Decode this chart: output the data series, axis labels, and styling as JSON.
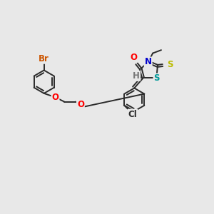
{
  "bg_color": "#e8e8e8",
  "bond_color": "#2a2a2a",
  "bond_lw": 1.4,
  "dbo": 0.05,
  "atom_colors": {
    "O": "#ff0000",
    "N": "#0000cc",
    "S_thioxo": "#bbbb00",
    "S_ring": "#009999",
    "Br": "#cc5500",
    "Cl": "#2a2a2a",
    "H": "#777777",
    "C": "#2a2a2a"
  },
  "fs": 8.5,
  "fig_bg": "#e8e8e8",
  "xlim": [
    0,
    10
  ],
  "ylim": [
    0,
    10
  ]
}
